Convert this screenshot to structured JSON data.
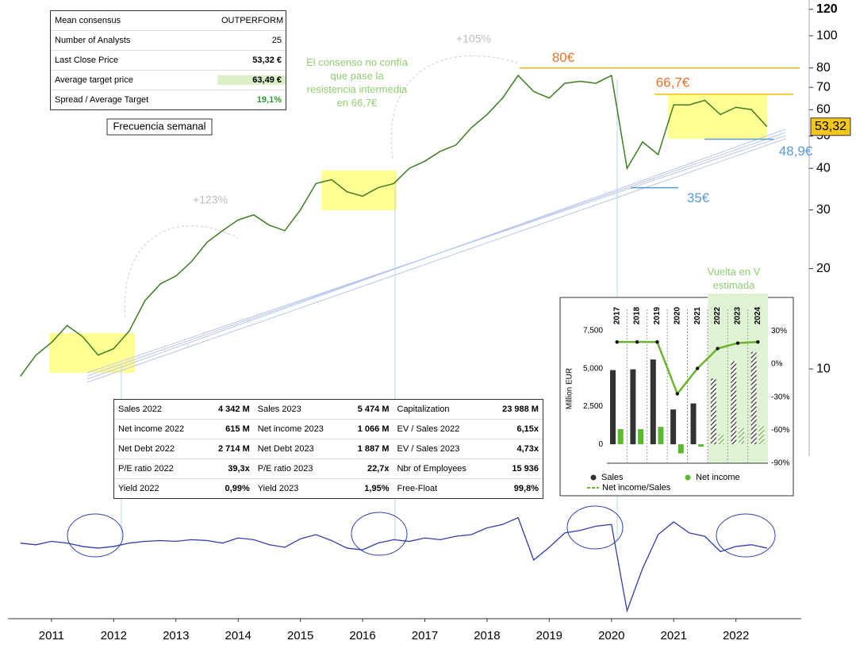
{
  "consensus_table": {
    "rows": [
      [
        "Mean consensus",
        "OUTPERFORM"
      ],
      [
        "Number of Analysts",
        "25"
      ],
      [
        "Last Close Price",
        "53,32 €"
      ],
      [
        "Average target price",
        "63,49 €"
      ],
      [
        "Spread / Average Target",
        "19,1%"
      ]
    ]
  },
  "fundamentals_table": {
    "rows": [
      [
        "Sales 2022",
        "4 342 M",
        "Sales 2023",
        "5 474 M",
        "Capitalization",
        "23 988 M"
      ],
      [
        "Net income 2022",
        "615 M",
        "Net income 2023",
        "1 066 M",
        "EV / Sales 2022",
        "6,15x"
      ],
      [
        "Net Debt 2022",
        "2 714 M",
        "Net Debt 2023",
        "1 887 M",
        "EV / Sales 2023",
        "4,73x"
      ],
      [
        "P/E ratio 2022",
        "39,3x",
        "P/E ratio 2023",
        "22,7x",
        "Nbr of Employees",
        "15 936"
      ],
      [
        "Yield 2022",
        "0,99%",
        "Yield 2023",
        "1,95%",
        "Free-Float",
        "99,8%"
      ]
    ]
  },
  "chart_data": [
    {
      "type": "line",
      "log_scale": true,
      "color": "#3c7d22",
      "x": [
        2010.5,
        2010.75,
        2011,
        2011.25,
        2011.5,
        2011.75,
        2012,
        2012.25,
        2012.5,
        2012.75,
        2013,
        2013.25,
        2013.5,
        2013.75,
        2014,
        2014.25,
        2014.5,
        2014.75,
        2015,
        2015.25,
        2015.5,
        2015.75,
        2016,
        2016.25,
        2016.5,
        2016.75,
        2017,
        2017.25,
        2017.5,
        2017.75,
        2018,
        2018.25,
        2018.5,
        2018.75,
        2019,
        2019.25,
        2019.5,
        2019.75,
        2020,
        2020.25,
        2020.5,
        2020.75,
        2021,
        2021.25,
        2021.5,
        2021.75,
        2022,
        2022.25,
        2022.5
      ],
      "values": [
        9.5,
        11,
        12,
        13.5,
        12.5,
        11,
        11.5,
        13,
        16,
        18,
        19,
        21,
        24,
        26,
        28,
        29,
        27,
        26,
        30,
        36,
        37,
        34,
        33,
        35,
        36,
        40,
        42,
        45,
        47,
        53,
        58,
        65,
        76,
        68,
        65,
        72,
        73,
        72,
        76,
        40,
        48,
        44,
        62,
        62,
        64,
        58,
        61,
        60,
        53.32
      ],
      "xlim": [
        2010.3,
        2023.05
      ],
      "xticks": [
        2011,
        2012,
        2013,
        2014,
        2015,
        2016,
        2017,
        2018,
        2019,
        2020,
        2021,
        2022
      ],
      "ylim": [
        1.78,
        128
      ],
      "yticks": [
        10,
        20,
        30,
        40,
        50,
        60,
        70,
        80,
        100,
        120
      ],
      "last_price": {
        "value": 53.32,
        "label": "53,32"
      },
      "levels": [
        {
          "value": 80,
          "label": "80€"
        },
        {
          "value": 66.7,
          "label": "66,7€"
        },
        {
          "value": 35,
          "label": "35€"
        },
        {
          "value": 48.9,
          "label": "48,9€"
        }
      ],
      "annotations": [
        "+123%",
        "+105%",
        "El consenso no confía que pase la resistencia intermedia en 66,7€",
        "Frecuencia semanal",
        "Vuelta en V estimada"
      ]
    },
    {
      "type": "oscillator",
      "color": "#2f3fb0",
      "ylim": [
        -80,
        70
      ],
      "values": [
        0,
        -2,
        2,
        0,
        -4,
        -6,
        -4,
        0,
        2,
        3,
        2,
        4,
        3,
        0,
        6,
        4,
        -2,
        -5,
        5,
        10,
        3,
        -6,
        -8,
        0,
        4,
        2,
        6,
        4,
        8,
        10,
        18,
        22,
        30,
        -20,
        -5,
        12,
        15,
        20,
        22,
        -80,
        -30,
        10,
        25,
        12,
        8,
        -10,
        -4,
        -2,
        -6
      ]
    },
    {
      "type": "bar",
      "categories": [
        "2017",
        "2018",
        "2019",
        "2020",
        "2021",
        "2022",
        "2023",
        "2024"
      ],
      "estimated": [
        false,
        false,
        false,
        false,
        false,
        true,
        true,
        true
      ],
      "y_label": "Million EUR",
      "series": [
        {
          "name": "Sales",
          "color": "#333333",
          "values": [
            4900,
            4950,
            5600,
            2300,
            2700,
            4342,
            5474,
            6100
          ]
        },
        {
          "name": "Net income",
          "color": "#5cb82e",
          "values": [
            1000,
            1000,
            1150,
            -600,
            -150,
            615,
            1066,
            1200
          ]
        },
        {
          "name": "Net income/Sales",
          "color": "#6ab42c",
          "axis": "y2",
          "values": [
            20,
            20,
            20,
            -27,
            -4,
            14,
            19,
            20
          ]
        }
      ],
      "ylim": [
        -1250,
        8650
      ],
      "yticks": [
        {
          "value": 7500,
          "label": "7,500"
        },
        {
          "value": 5000,
          "label": "5,000"
        },
        {
          "value": 2500,
          "label": "2,500"
        },
        0
      ],
      "y2lim": [
        -90,
        46
      ],
      "y2ticks": [
        {
          "value": 30,
          "label": "30%"
        },
        {
          "value": 0,
          "label": "0%"
        },
        {
          "value": -30,
          "label": "-30%"
        },
        {
          "value": -60,
          "label": "-60%"
        },
        {
          "value": -90,
          "label": "-90%"
        }
      ]
    }
  ]
}
